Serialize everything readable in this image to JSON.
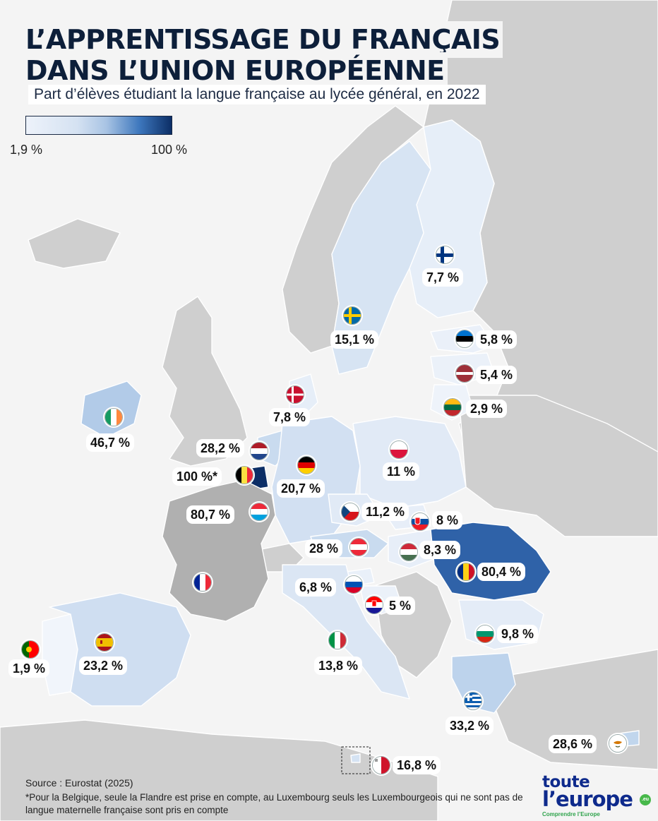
{
  "title_line1": "L’APPRENTISSAGE DU FRANÇAIS",
  "title_line2": "DANS L’UNION EUROPÉENNE",
  "subtitle": "Part d’élèves étudiant la langue française au lycée général, en 2022",
  "legend": {
    "min_label": "1,9 %",
    "max_label": "100 %",
    "min_color": "#edf2fa",
    "max_color": "#0c2e66"
  },
  "countries": [
    {
      "id": "fi",
      "flag": "finland-flag",
      "label": "7,7 %"
    },
    {
      "id": "se",
      "flag": "sweden-flag",
      "label": "15,1 %"
    },
    {
      "id": "ee",
      "flag": "estonia-flag",
      "label": "5,8 %"
    },
    {
      "id": "lv",
      "flag": "latvia-flag",
      "label": "5,4 %"
    },
    {
      "id": "lt",
      "flag": "lithuania-flag",
      "label": "2,9 %"
    },
    {
      "id": "dk",
      "flag": "denmark-flag",
      "label": "7,8 %"
    },
    {
      "id": "ie",
      "flag": "ireland-flag",
      "label": "46,7 %"
    },
    {
      "id": "nl",
      "flag": "netherlands-flag",
      "label": "28,2 %"
    },
    {
      "id": "be",
      "flag": "belgium-flag",
      "label": "100 %*"
    },
    {
      "id": "lu",
      "flag": "luxembourg-flag",
      "label": "80,7 %"
    },
    {
      "id": "de",
      "flag": "germany-flag",
      "label": "20,7 %"
    },
    {
      "id": "pl",
      "flag": "poland-flag",
      "label": "11 %"
    },
    {
      "id": "cz",
      "flag": "czechia-flag",
      "label": "11,2 %"
    },
    {
      "id": "sk",
      "flag": "slovakia-flag",
      "label": "8 %"
    },
    {
      "id": "at",
      "flag": "austria-flag",
      "label": "28 %"
    },
    {
      "id": "hu",
      "flag": "hungary-flag",
      "label": "8,3 %"
    },
    {
      "id": "ro",
      "flag": "romania-flag",
      "label": "80,4 %"
    },
    {
      "id": "fr",
      "flag": "france-flag",
      "label": ""
    },
    {
      "id": "si",
      "flag": "slovenia-flag",
      "label": "6,8 %"
    },
    {
      "id": "hr",
      "flag": "croatia-flag",
      "label": "5 %"
    },
    {
      "id": "bg",
      "flag": "bulgaria-flag",
      "label": "9,8 %"
    },
    {
      "id": "pt",
      "flag": "portugal-flag",
      "label": "1,9 %"
    },
    {
      "id": "es",
      "flag": "spain-flag",
      "label": "23,2 %"
    },
    {
      "id": "it",
      "flag": "italy-flag",
      "label": "13,8 %"
    },
    {
      "id": "gr",
      "flag": "greece-flag",
      "label": "33,2 %"
    },
    {
      "id": "cy",
      "flag": "cyprus-flag",
      "label": "28,6 %"
    },
    {
      "id": "mt",
      "flag": "malta-flag",
      "label": "16,8 %"
    }
  ],
  "source": "Source : Eurostat (2025)",
  "footnote": "*Pour la Belgique, seule la Flandre est prise en compte, au Luxembourg seuls les Luxembourgeois qui ne sont pas de langue maternelle française sont pris en compte",
  "logo": {
    "line1": "toute",
    "line2": "l’europe",
    "tagline": "Comprendre l’Europe",
    "badge": ".eu"
  }
}
